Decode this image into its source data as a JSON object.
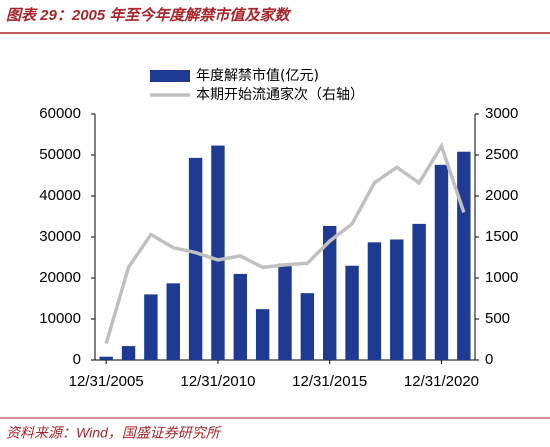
{
  "chart_data": {
    "type": "bar",
    "title": "图表 29：2005 年至今年度解禁市值及家数",
    "source": "资料来源：Wind，国盛证券研究所",
    "categories": [
      "12/31/2005",
      null,
      null,
      null,
      null,
      "12/31/2010",
      null,
      null,
      null,
      null,
      "12/31/2015",
      null,
      null,
      null,
      null,
      "12/31/2020",
      null
    ],
    "series": [
      {
        "name": "年度解禁市值(亿元)",
        "type": "bar",
        "color": "#1f3a93",
        "values": [
          800,
          3400,
          16000,
          18700,
          49300,
          52300,
          21000,
          12400,
          23500,
          16300,
          32700,
          23000,
          28700,
          29400,
          33200,
          47600,
          50800
        ]
      },
      {
        "name": "本期开始流通家次（右轴）",
        "type": "line",
        "axis": "y2",
        "color": "#c0c0c0",
        "values": [
          200,
          1130,
          1530,
          1370,
          1310,
          1220,
          1270,
          1130,
          1160,
          1180,
          1450,
          1660,
          2160,
          2350,
          2160,
          2610,
          1800
        ]
      }
    ],
    "ylim": [
      0,
      60000
    ],
    "yticks": [
      0,
      10000,
      20000,
      30000,
      40000,
      50000,
      60000
    ],
    "y2lim": [
      0,
      3000
    ],
    "y2ticks": [
      0,
      500,
      1000,
      1500,
      2000,
      2500,
      3000
    ],
    "legend": "top"
  }
}
